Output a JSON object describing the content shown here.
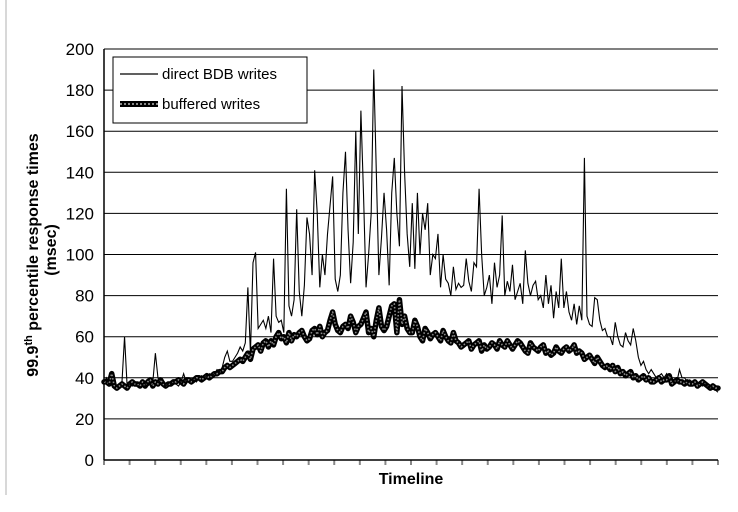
{
  "chart_data": {
    "type": "line",
    "title": "",
    "xlabel": "Timeline",
    "ylabel": "99.9th percentile response times (msec)",
    "ylabel_parts": {
      "pre": "99.9",
      "sup": "th",
      "post": " percentile response times",
      "line2": "(msec)"
    },
    "ylim": [
      0,
      200
    ],
    "yticks": [
      0,
      20,
      40,
      60,
      80,
      100,
      120,
      140,
      160,
      180,
      200
    ],
    "grid": true,
    "legend_position": "top-left",
    "x_tick_count": 24,
    "x": [
      0,
      1,
      2,
      3,
      4,
      5,
      6,
      7,
      8,
      9,
      10,
      11,
      12,
      13,
      14,
      15,
      16,
      17,
      18,
      19,
      20,
      21,
      22,
      23,
      24,
      25,
      26,
      27,
      28,
      29,
      30,
      31,
      32,
      33,
      34,
      35,
      36,
      37,
      38,
      39,
      40,
      41,
      42,
      43,
      44,
      45,
      46,
      47,
      48,
      49,
      50,
      51,
      52,
      53,
      54,
      55,
      56,
      57,
      58,
      59,
      60,
      61,
      62,
      63,
      64,
      65,
      66,
      67,
      68,
      69,
      70,
      71,
      72,
      73,
      74,
      75,
      76,
      77,
      78,
      79,
      80,
      81,
      82,
      83,
      84,
      85,
      86,
      87,
      88,
      89,
      90,
      91,
      92,
      93,
      94,
      95,
      96,
      97,
      98,
      99,
      100,
      101,
      102,
      103,
      104,
      105,
      106,
      107,
      108,
      109,
      110,
      111,
      112,
      113,
      114,
      115,
      116,
      117,
      118,
      119,
      120,
      121,
      122,
      123,
      124,
      125,
      126,
      127,
      128,
      129,
      130,
      131,
      132,
      133,
      134,
      135,
      136,
      137,
      138,
      139,
      140,
      141,
      142,
      143,
      144,
      145,
      146,
      147,
      148,
      149,
      150,
      151,
      152,
      153,
      154,
      155,
      156,
      157,
      158,
      159,
      160,
      161,
      162,
      163,
      164,
      165,
      166,
      167,
      168,
      169,
      170,
      171,
      172,
      173,
      174,
      175,
      176,
      177,
      178,
      179,
      180,
      181,
      182,
      183,
      184,
      185,
      186,
      187,
      188,
      189,
      190,
      191,
      192,
      193,
      194,
      195,
      196,
      197,
      198,
      199,
      200,
      201,
      202,
      203,
      204,
      205,
      206,
      207,
      208,
      209,
      210,
      211,
      212,
      213,
      214,
      215,
      216,
      217,
      218,
      219,
      220,
      221,
      222,
      223,
      224,
      225,
      226,
      227,
      228,
      229,
      230,
      231,
      232,
      233,
      234,
      235,
      236,
      237,
      238,
      239
    ],
    "series": [
      {
        "name": "direct BDB writes",
        "style": "thin",
        "color": "#000000",
        "values": [
          38,
          40,
          36,
          37,
          35,
          36,
          37,
          38,
          60,
          36,
          37,
          36,
          38,
          37,
          38,
          37,
          37,
          36,
          37,
          38,
          52,
          40,
          37,
          38,
          36,
          37,
          38,
          37,
          37,
          36,
          38,
          42,
          38,
          38,
          37,
          39,
          38,
          40,
          41,
          40,
          41,
          42,
          41,
          42,
          44,
          43,
          45,
          50,
          53,
          48,
          48,
          50,
          52,
          55,
          53,
          57,
          84,
          52,
          96,
          101,
          64,
          66,
          68,
          64,
          70,
          62,
          98,
          70,
          67,
          68,
          62,
          132,
          75,
          70,
          78,
          122,
          82,
          70,
          85,
          118,
          110,
          90,
          141,
          120,
          84,
          100,
          90,
          110,
          124,
          138,
          88,
          82,
          90,
          130,
          150,
          112,
          86,
          106,
          160,
          110,
          170,
          130,
          84,
          100,
          120,
          190,
          140,
          90,
          108,
          130,
          112,
          85,
          130,
          147,
          120,
          104,
          182,
          140,
          110,
          94,
          125,
          93,
          130,
          100,
          120,
          112,
          125,
          90,
          100,
          98,
          110,
          84,
          100,
          88,
          86,
          80,
          94,
          83,
          86,
          84,
          85,
          98,
          87,
          82,
          96,
          94,
          132,
          100,
          80,
          84,
          90,
          76,
          96,
          84,
          90,
          119,
          80,
          87,
          82,
          95,
          78,
          82,
          86,
          76,
          102,
          86,
          80,
          85,
          87,
          78,
          80,
          74,
          90,
          76,
          85,
          69,
          82,
          74,
          98,
          74,
          82,
          72,
          68,
          76,
          66,
          75,
          68,
          147,
          70,
          66,
          65,
          79,
          78,
          68,
          63,
          64,
          60,
          60,
          56,
          67,
          60,
          56,
          55,
          62,
          58,
          56,
          64,
          58,
          50,
          46,
          48,
          44,
          42,
          44,
          42,
          40,
          41,
          42,
          40,
          42,
          39,
          40,
          38,
          38,
          44,
          40,
          40,
          38,
          39,
          38,
          37,
          38,
          37,
          36,
          37,
          36,
          35,
          35,
          34,
          33
        ]
      },
      {
        "name": "buffered writes",
        "style": "thick",
        "color": "#000000",
        "values": [
          38,
          38,
          37,
          42,
          36,
          35,
          36,
          37,
          36,
          35,
          37,
          38,
          37,
          37,
          36,
          38,
          36,
          38,
          39,
          36,
          38,
          37,
          39,
          37,
          36,
          37,
          37,
          38,
          38,
          39,
          38,
          37,
          39,
          39,
          38,
          39,
          40,
          40,
          39,
          40,
          41,
          40,
          41,
          42,
          42,
          43,
          43,
          45,
          46,
          45,
          46,
          47,
          48,
          49,
          48,
          50,
          52,
          49,
          54,
          55,
          56,
          53,
          57,
          58,
          55,
          58,
          56,
          60,
          62,
          59,
          60,
          57,
          62,
          58,
          61,
          60,
          62,
          63,
          60,
          58,
          59,
          63,
          64,
          61,
          65,
          60,
          62,
          63,
          68,
          72,
          66,
          63,
          62,
          65,
          66,
          64,
          70,
          67,
          62,
          65,
          66,
          69,
          72,
          62,
          64,
          60,
          68,
          74,
          65,
          63,
          65,
          70,
          75,
          76,
          62,
          78,
          66,
          70,
          64,
          62,
          62,
          68,
          65,
          60,
          58,
          64,
          62,
          59,
          61,
          62,
          60,
          58,
          63,
          60,
          58,
          57,
          62,
          58,
          57,
          55,
          56,
          57,
          58,
          54,
          56,
          57,
          58,
          53,
          56,
          54,
          55,
          57,
          56,
          54,
          58,
          56,
          55,
          58,
          56,
          54,
          56,
          58,
          57,
          55,
          53,
          52,
          57,
          55,
          54,
          53,
          55,
          56,
          52,
          53,
          51,
          52,
          55,
          53,
          52,
          54,
          55,
          53,
          54,
          56,
          52,
          53,
          52,
          49,
          50,
          51,
          49,
          47,
          50,
          48,
          46,
          45,
          46,
          44,
          46,
          43,
          45,
          42,
          43,
          41,
          42,
          43,
          40,
          41,
          39,
          40,
          41,
          39,
          40,
          38,
          38,
          39,
          40,
          38,
          39,
          39,
          41,
          37,
          38,
          39,
          38,
          38,
          37,
          38,
          37,
          37,
          38,
          36,
          37,
          38,
          37,
          36,
          35,
          36,
          35,
          35
        ]
      }
    ]
  }
}
